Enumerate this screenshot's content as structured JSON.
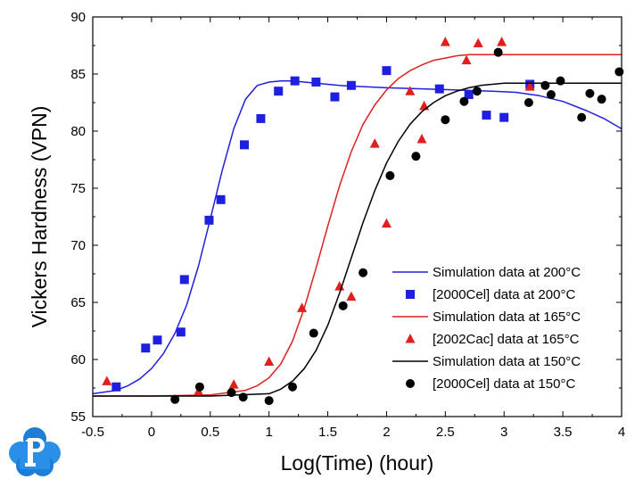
{
  "chart_data": {
    "type": "scatter",
    "xlabel": "Log(Time) (hour)",
    "ylabel": "Vickers Hardness (VPN)",
    "xlim": [
      -0.5,
      4
    ],
    "ylim": [
      55,
      90
    ],
    "xticks": [
      "-0.5",
      "0",
      "0.5",
      "1",
      "1.5",
      "2",
      "2.5",
      "3",
      "3.5",
      "4"
    ],
    "yticks": [
      "55",
      "60",
      "65",
      "70",
      "75",
      "80",
      "85",
      "90"
    ],
    "grid": false,
    "legend_position": "lower-right",
    "series": [
      {
        "name": "Simulation data at 200°C",
        "kind": "line",
        "color": "#1f1fe0",
        "x": [
          -0.5,
          -0.3,
          -0.2,
          -0.1,
          0.0,
          0.1,
          0.2,
          0.3,
          0.4,
          0.5,
          0.6,
          0.7,
          0.8,
          0.9,
          1.0,
          1.1,
          1.2,
          1.3,
          1.4,
          1.6,
          1.8,
          2.0,
          2.3,
          2.6,
          2.9,
          3.1,
          3.3,
          3.5,
          3.7,
          3.85,
          4.0
        ],
        "y": [
          57.0,
          57.3,
          57.7,
          58.3,
          59.2,
          60.5,
          62.3,
          64.8,
          68.2,
          72.3,
          76.5,
          80.2,
          82.8,
          84.0,
          84.3,
          84.4,
          84.4,
          84.3,
          84.2,
          84.0,
          83.9,
          83.8,
          83.7,
          83.6,
          83.5,
          83.4,
          83.1,
          82.6,
          81.8,
          81.1,
          80.2
        ]
      },
      {
        "name": "[2000Cel] data at 200°C",
        "kind": "marker",
        "marker": "square",
        "color": "#1f1fe0",
        "x": [
          -0.3,
          -0.05,
          0.05,
          0.25,
          0.28,
          0.49,
          0.59,
          0.79,
          0.93,
          1.08,
          1.22,
          1.4,
          1.56,
          1.7,
          2.0,
          2.45,
          2.7,
          2.85,
          3.0,
          3.22
        ],
        "y": [
          57.6,
          61.0,
          61.7,
          62.4,
          67.0,
          72.2,
          74.0,
          78.8,
          81.1,
          83.5,
          84.4,
          84.3,
          83.0,
          84.0,
          85.3,
          83.7,
          83.2,
          81.4,
          81.2,
          84.1
        ]
      },
      {
        "name": "Simulation data at 165°C",
        "kind": "line",
        "color": "#e01f1f",
        "x": [
          -0.5,
          0.0,
          0.5,
          0.8,
          0.9,
          1.0,
          1.1,
          1.2,
          1.3,
          1.4,
          1.5,
          1.6,
          1.7,
          1.8,
          1.9,
          2.0,
          2.1,
          2.2,
          2.3,
          2.4,
          2.5,
          2.6,
          2.7,
          2.8,
          3.0,
          3.5,
          4.0
        ],
        "y": [
          56.8,
          56.8,
          56.9,
          57.3,
          57.7,
          58.4,
          59.6,
          61.6,
          64.5,
          68.0,
          71.7,
          75.2,
          78.2,
          80.6,
          82.3,
          83.6,
          84.6,
          85.3,
          85.8,
          86.2,
          86.4,
          86.6,
          86.7,
          86.7,
          86.7,
          86.7,
          86.7
        ]
      },
      {
        "name": "[2002Cac] data at 165°C",
        "kind": "marker",
        "marker": "triangle",
        "color": "#e01f1f",
        "x": [
          -0.38,
          0.4,
          0.7,
          1.0,
          1.28,
          1.6,
          1.7,
          1.9,
          2.0,
          2.2,
          2.3,
          2.32,
          2.5,
          2.68,
          2.78,
          2.98,
          3.22
        ],
        "y": [
          58.1,
          57.2,
          57.8,
          59.8,
          64.5,
          66.4,
          65.5,
          78.9,
          71.9,
          83.5,
          79.3,
          82.2,
          87.8,
          86.2,
          87.7,
          87.8,
          83.9
        ]
      },
      {
        "name": "Simulation data at 150°C",
        "kind": "line",
        "color": "#000000",
        "x": [
          -0.5,
          0.0,
          0.5,
          1.0,
          1.1,
          1.2,
          1.3,
          1.4,
          1.5,
          1.6,
          1.7,
          1.8,
          1.9,
          2.0,
          2.1,
          2.2,
          2.3,
          2.4,
          2.5,
          2.6,
          2.7,
          2.8,
          2.9,
          3.0,
          3.2,
          3.5,
          4.0
        ],
        "y": [
          56.8,
          56.8,
          56.8,
          57.0,
          57.4,
          58.1,
          59.2,
          60.8,
          63.0,
          65.8,
          68.9,
          72.0,
          74.8,
          77.2,
          79.1,
          80.6,
          81.7,
          82.5,
          83.1,
          83.5,
          83.8,
          84.0,
          84.1,
          84.2,
          84.2,
          84.2,
          84.2
        ]
      },
      {
        "name": "[2000Cel] data at 150°C",
        "kind": "marker",
        "marker": "circle",
        "color": "#000000",
        "x": [
          0.2,
          0.41,
          0.68,
          0.78,
          1.0,
          1.2,
          1.38,
          1.63,
          1.8,
          2.03,
          2.25,
          2.5,
          2.66,
          2.77,
          2.95,
          3.21,
          3.35,
          3.4,
          3.48,
          3.66,
          3.73,
          3.83,
          3.98
        ],
        "y": [
          56.5,
          57.6,
          57.1,
          56.7,
          56.4,
          57.6,
          62.3,
          64.7,
          67.6,
          76.1,
          77.8,
          81.0,
          82.6,
          83.5,
          86.9,
          82.5,
          84.0,
          83.2,
          84.4,
          81.2,
          83.3,
          82.8,
          85.2
        ]
      }
    ]
  }
}
